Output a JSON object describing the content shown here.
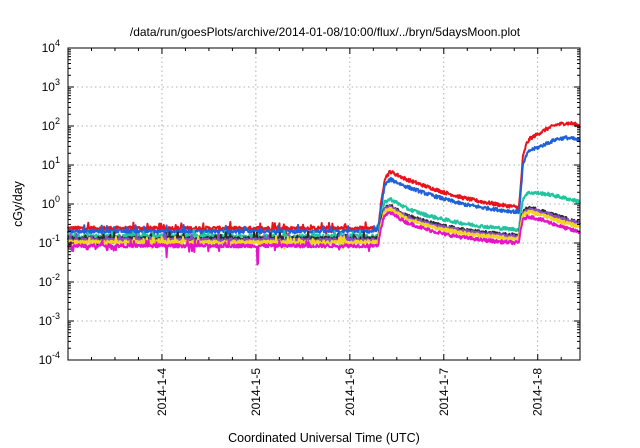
{
  "chart_data": {
    "type": "line",
    "title": "/data/run/goesPlots/archive/2014-01-08/10:00/flux/../bryn/5daysMoon.plot",
    "xlabel": "Coordinated Universal Time (UTC)",
    "ylabel": "cGy/day",
    "y_scale": "log",
    "ylim": [
      0.0001,
      10000
    ],
    "xlim": [
      -1.0,
      4.45
    ],
    "x_unit": "days after 2014-01-04 00:00 UTC",
    "y_ticks": [
      {
        "value": 0.0001,
        "base": "10",
        "exp": "-4"
      },
      {
        "value": 0.001,
        "base": "10",
        "exp": "-3"
      },
      {
        "value": 0.01,
        "base": "10",
        "exp": "-2"
      },
      {
        "value": 0.1,
        "base": "10",
        "exp": "-1"
      },
      {
        "value": 1,
        "base": "10",
        "exp": "0"
      },
      {
        "value": 10,
        "base": "10",
        "exp": "1"
      },
      {
        "value": 100,
        "base": "10",
        "exp": "2"
      },
      {
        "value": 1000,
        "base": "10",
        "exp": "3"
      },
      {
        "value": 10000,
        "base": "10",
        "exp": "4"
      }
    ],
    "x_ticks": [
      {
        "value": 0,
        "label": "2014-1-4"
      },
      {
        "value": 1,
        "label": "2014-1-5"
      },
      {
        "value": 2,
        "label": "2014-1-6"
      },
      {
        "value": 3,
        "label": "2014-1-7"
      },
      {
        "value": 4,
        "label": "2014-1-8"
      }
    ],
    "grid": true,
    "series": [
      {
        "color": "#e8141b",
        "baseline": 0.24,
        "x": [
          -1.0,
          2.3,
          2.33,
          2.37,
          2.43,
          2.6,
          2.8,
          3.0,
          3.2,
          3.4,
          3.6,
          3.8,
          3.82,
          3.84,
          3.88,
          3.92,
          4.0,
          4.1,
          4.2,
          4.3,
          4.38,
          4.45
        ],
        "y": [
          0.24,
          0.24,
          0.9,
          4.5,
          6.8,
          4.3,
          2.9,
          2.0,
          1.45,
          1.15,
          0.95,
          0.82,
          3.0,
          15,
          35,
          48,
          62,
          85,
          108,
          118,
          115,
          100
        ]
      },
      {
        "color": "#1f62d8",
        "baseline": 0.2,
        "x": [
          -1.0,
          2.3,
          2.33,
          2.37,
          2.43,
          2.6,
          2.8,
          3.0,
          3.2,
          3.4,
          3.6,
          3.8,
          3.82,
          3.84,
          3.88,
          3.92,
          4.0,
          4.1,
          4.2,
          4.3,
          4.38,
          4.45
        ],
        "y": [
          0.2,
          0.2,
          0.7,
          3.0,
          4.3,
          2.8,
          1.9,
          1.35,
          1.0,
          0.82,
          0.7,
          0.62,
          2.0,
          9.0,
          18,
          24,
          28,
          36,
          46,
          50,
          47,
          42
        ]
      },
      {
        "color": "#22c4a0",
        "baseline": 0.15,
        "x": [
          -1.0,
          2.3,
          2.33,
          2.37,
          2.43,
          2.6,
          2.8,
          3.0,
          3.2,
          3.4,
          3.6,
          3.8,
          3.82,
          3.84,
          3.88,
          3.92,
          4.0,
          4.1,
          4.2,
          4.3,
          4.38,
          4.45
        ],
        "y": [
          0.15,
          0.15,
          0.4,
          1.1,
          1.35,
          0.78,
          0.53,
          0.4,
          0.32,
          0.27,
          0.24,
          0.22,
          0.6,
          1.3,
          1.85,
          1.95,
          1.9,
          1.8,
          1.6,
          1.4,
          1.25,
          1.15
        ]
      },
      {
        "color": "#2b2b2b",
        "baseline": 0.13,
        "x": [
          -1.0,
          2.3,
          2.33,
          2.37,
          2.43,
          2.6,
          2.8,
          3.0,
          3.2,
          3.4,
          3.6,
          3.8,
          3.82,
          3.84,
          3.88,
          3.92,
          4.0,
          4.1,
          4.2,
          4.3,
          4.38,
          4.45
        ],
        "y": [
          0.13,
          0.13,
          0.36,
          0.8,
          0.9,
          0.52,
          0.36,
          0.27,
          0.22,
          0.19,
          0.17,
          0.155,
          0.38,
          0.6,
          0.74,
          0.78,
          0.72,
          0.6,
          0.5,
          0.42,
          0.36,
          0.33
        ]
      },
      {
        "color": "#8a4fc7",
        "baseline": 0.12,
        "x": [
          -1.0,
          2.3,
          2.33,
          2.37,
          2.43,
          2.6,
          2.8,
          3.0,
          3.2,
          3.4,
          3.6,
          3.8,
          3.82,
          3.84,
          3.88,
          3.92,
          4.0,
          4.1,
          4.2,
          4.3,
          4.38,
          4.45
        ],
        "y": [
          0.12,
          0.12,
          0.33,
          0.74,
          0.84,
          0.48,
          0.33,
          0.25,
          0.205,
          0.175,
          0.158,
          0.145,
          0.35,
          0.56,
          0.69,
          0.72,
          0.66,
          0.56,
          0.46,
          0.39,
          0.34,
          0.31
        ]
      },
      {
        "color": "#f2d422",
        "baseline": 0.105,
        "x": [
          -1.0,
          2.3,
          2.33,
          2.37,
          2.43,
          2.6,
          2.8,
          3.0,
          3.2,
          3.4,
          3.6,
          3.8,
          3.82,
          3.84,
          3.88,
          3.92,
          4.0,
          4.1,
          4.2,
          4.3,
          4.38,
          4.45
        ],
        "y": [
          0.105,
          0.105,
          0.3,
          0.66,
          0.74,
          0.43,
          0.29,
          0.22,
          0.18,
          0.155,
          0.14,
          0.128,
          0.31,
          0.5,
          0.6,
          0.62,
          0.56,
          0.47,
          0.39,
          0.33,
          0.29,
          0.27
        ]
      },
      {
        "color": "#e614c8",
        "baseline": 0.085,
        "x": [
          -1.0,
          2.3,
          2.33,
          2.37,
          2.43,
          2.6,
          2.8,
          3.0,
          3.2,
          3.4,
          3.6,
          3.8,
          3.82,
          3.84,
          3.88,
          3.92,
          4.0,
          4.1,
          4.2,
          4.3,
          4.38,
          4.45
        ],
        "y": [
          0.085,
          0.085,
          0.24,
          0.52,
          0.6,
          0.34,
          0.23,
          0.17,
          0.14,
          0.12,
          0.108,
          0.1,
          0.24,
          0.38,
          0.46,
          0.47,
          0.42,
          0.35,
          0.29,
          0.24,
          0.21,
          0.19
        ]
      }
    ]
  }
}
